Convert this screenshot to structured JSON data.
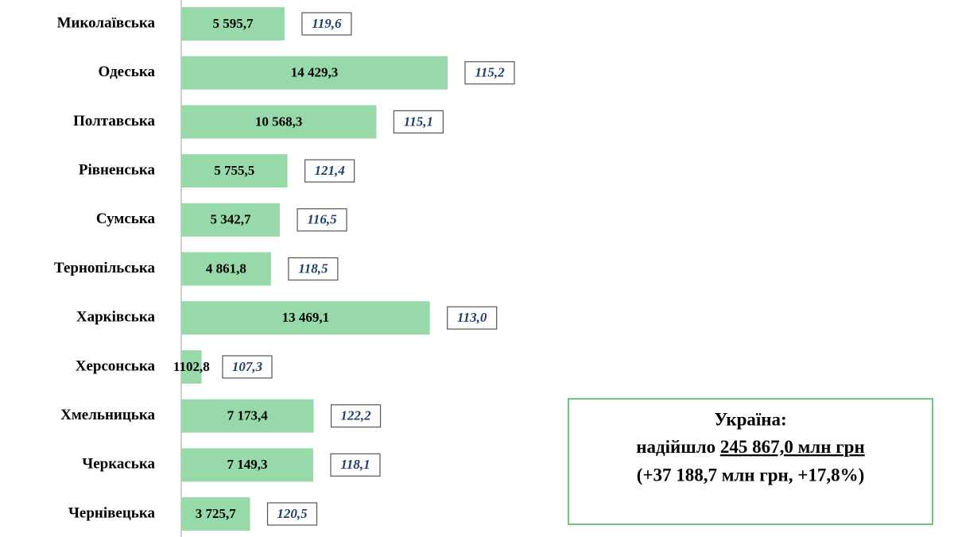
{
  "chart_data": {
    "type": "bar",
    "orientation": "horizontal",
    "categories": [
      "Миколаївська",
      "Одеська",
      "Полтавська",
      "Рівненська",
      "Сумська",
      "Тернопільська",
      "Харківська",
      "Херсонська",
      "Хмельницька",
      "Черкаська",
      "Чернівецька"
    ],
    "values": [
      5595.7,
      14429.3,
      10568.3,
      5755.5,
      5342.7,
      4861.8,
      13469.1,
      1102.8,
      7173.4,
      7149.3,
      3725.7
    ],
    "value_labels": [
      "5 595,7",
      "14 429,3",
      "10 568,3",
      "5 755,5",
      "5 342,7",
      "4 861,8",
      "13 469,1",
      "1102,8",
      "7 173,4",
      "7 149,3",
      "3 725,7"
    ],
    "color": "#97d9a9",
    "indices": [
      119.6,
      115.2,
      115.1,
      121.4,
      116.5,
      118.5,
      113.0,
      107.3,
      122.2,
      118.1,
      120.5
    ],
    "index_labels": [
      "119,6",
      "115,2",
      "115,1",
      "121,4",
      "116,5",
      "118,5",
      "113,0",
      "107,3",
      "122,2",
      "118,1",
      "120,5"
    ],
    "summary": {
      "title": "Україна:",
      "prefix": "надійшло",
      "amount": "245 867,0 млн грн",
      "change": "(+37 188,7 млн грн, +17,8%)"
    }
  }
}
